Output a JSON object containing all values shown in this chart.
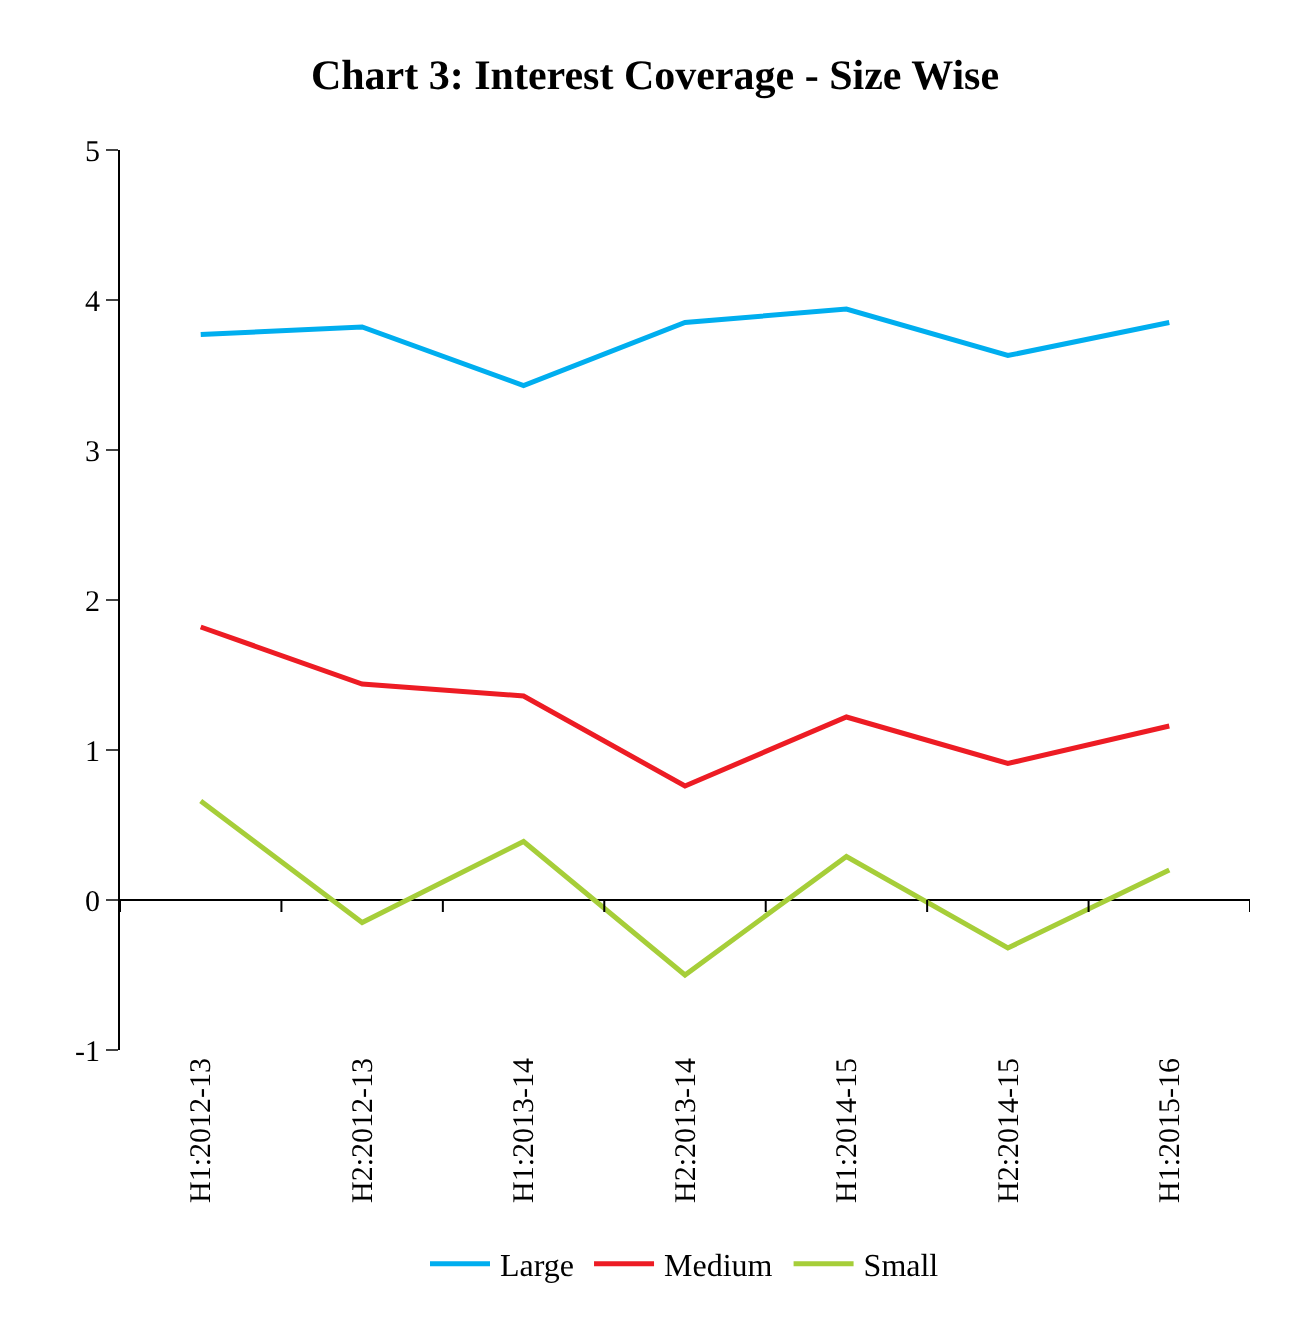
{
  "chart_data": {
    "type": "line",
    "title": "Chart 3: Interest Coverage - Size Wise",
    "categories": [
      "H1:2012-13",
      "H2:2012-13",
      "H1:2013-14",
      "H2:2013-14",
      "H1:2014-15",
      "H2:2014-15",
      "H1:2015-16"
    ],
    "series": [
      {
        "name": "Large",
        "color": "#00aeef",
        "values": [
          3.77,
          3.82,
          3.43,
          3.85,
          3.94,
          3.63,
          3.85
        ]
      },
      {
        "name": "Medium",
        "color": "#ed1c24",
        "values": [
          1.82,
          1.44,
          1.36,
          0.76,
          1.22,
          0.91,
          1.16
        ]
      },
      {
        "name": "Small",
        "color": "#a6ce39",
        "values": [
          0.66,
          -0.15,
          0.39,
          -0.5,
          0.29,
          -0.32,
          0.2
        ]
      }
    ],
    "ylim": [
      -1,
      5
    ],
    "yticks": [
      -1,
      0,
      1,
      2,
      3,
      4,
      5
    ],
    "legend": "bottom",
    "marker": "none",
    "line_style": "solid"
  }
}
